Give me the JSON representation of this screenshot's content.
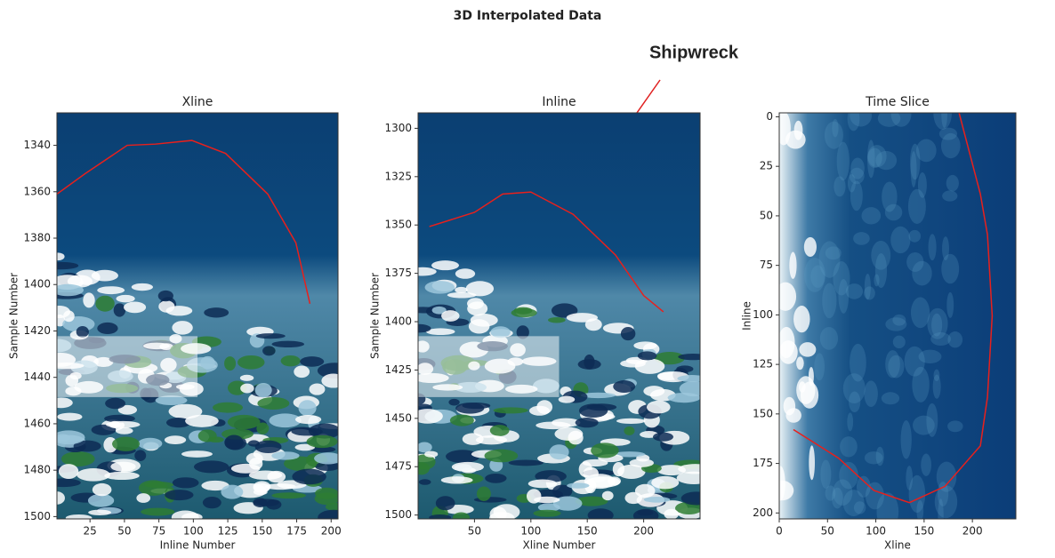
{
  "suptitle": "3D Interpolated Data",
  "annotation": "Shipwreck",
  "chart_data": [
    {
      "type": "image",
      "title": "Xline",
      "xlabel": "Inline Number",
      "ylabel": "Sample Number",
      "xlim": [
        1,
        205
      ],
      "ylim": [
        1326,
        1501
      ],
      "y_inverted": true,
      "xticks": [
        25,
        50,
        75,
        100,
        125,
        150,
        175,
        200
      ],
      "yticks": [
        1340,
        1360,
        1380,
        1400,
        1420,
        1440,
        1460,
        1480,
        1500
      ]
    },
    {
      "type": "image",
      "title": "Inline",
      "xlabel": "Xline Number",
      "ylabel": "Sample Number",
      "xlim": [
        0,
        250
      ],
      "ylim": [
        1292,
        1502
      ],
      "y_inverted": true,
      "xticks": [
        50,
        100,
        150,
        200
      ],
      "yticks": [
        1300,
        1325,
        1350,
        1375,
        1400,
        1425,
        1450,
        1475,
        1500
      ]
    },
    {
      "type": "image",
      "title": "Time Slice",
      "xlabel": "Xline",
      "ylabel": "Inline",
      "xlim": [
        0,
        245
      ],
      "ylim": [
        -2,
        203
      ],
      "y_inverted": true,
      "xticks": [
        0,
        50,
        100,
        150,
        200
      ],
      "yticks": [
        0,
        25,
        50,
        75,
        100,
        125,
        150,
        175,
        200
      ]
    }
  ]
}
